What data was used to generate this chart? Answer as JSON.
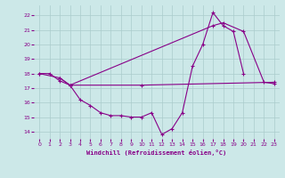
{
  "xlabel": "Windchill (Refroidissement éolien,°C)",
  "bg_color": "#cce8e8",
  "grid_color": "#aacccc",
  "line_color": "#880088",
  "xlim": [
    -0.5,
    23.5
  ],
  "ylim": [
    13.5,
    22.7
  ],
  "yticks": [
    14,
    15,
    16,
    17,
    18,
    19,
    20,
    21,
    22
  ],
  "xticks": [
    0,
    1,
    2,
    3,
    4,
    5,
    6,
    7,
    8,
    9,
    10,
    11,
    12,
    13,
    14,
    15,
    16,
    17,
    18,
    19,
    20,
    21,
    22,
    23
  ],
  "line1_x": [
    0,
    1,
    2,
    3,
    4,
    5,
    6,
    7,
    8,
    9,
    10,
    11,
    12,
    13,
    14,
    15,
    16,
    17,
    18,
    19,
    20
  ],
  "line1_y": [
    18.0,
    18.0,
    17.5,
    17.2,
    16.2,
    15.8,
    15.3,
    15.1,
    15.1,
    15.0,
    15.0,
    15.3,
    13.8,
    14.2,
    15.3,
    18.5,
    20.0,
    22.2,
    21.3,
    20.9,
    18.0
  ],
  "line2_x": [
    2,
    3,
    17,
    18,
    20,
    22,
    23
  ],
  "line2_y": [
    17.7,
    17.2,
    21.3,
    21.5,
    20.9,
    17.4,
    17.3
  ],
  "line3_x": [
    0,
    2,
    3,
    10,
    23
  ],
  "line3_y": [
    18.0,
    17.7,
    17.2,
    17.2,
    17.4
  ]
}
